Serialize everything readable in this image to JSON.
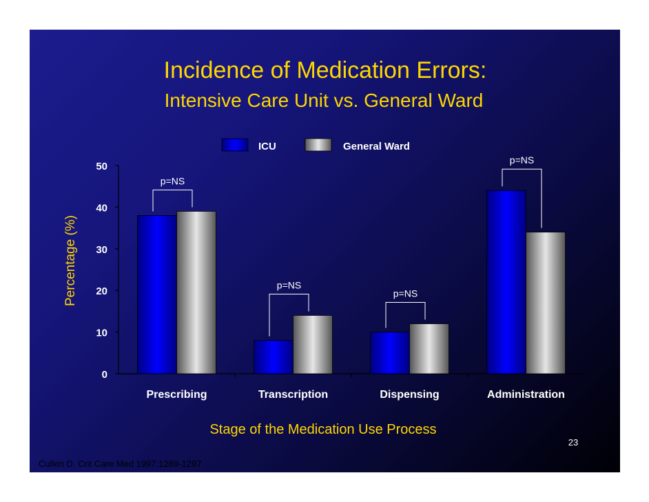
{
  "chart_data": {
    "type": "bar",
    "title": "Incidence of Medication Errors:",
    "subtitle": "Intensive Care Unit vs. General Ward",
    "xlabel": "Stage of the Medication Use Process",
    "ylabel": "Percentage (%)",
    "ylim": [
      0,
      50
    ],
    "yticks": [
      0,
      10,
      20,
      30,
      40,
      50
    ],
    "categories": [
      "Prescribing",
      "Transcription",
      "Dispensing",
      "Administration"
    ],
    "series": [
      {
        "name": "ICU",
        "values": [
          38,
          8,
          10,
          44
        ]
      },
      {
        "name": "General Ward",
        "values": [
          39,
          14,
          12,
          34
        ]
      }
    ],
    "annotations": [
      "p=NS",
      "p=NS",
      "p=NS",
      "p=NS"
    ],
    "legend_position": "top-right"
  },
  "slide": {
    "page_number": "23",
    "citation": "Cullen D. Crit Care Med 1997;1289-1297"
  },
  "colors": {
    "title": "#ffd700",
    "text": "#ffffff",
    "icu_bar": "#0000ff",
    "ward_bar": "#a0a0a0"
  }
}
